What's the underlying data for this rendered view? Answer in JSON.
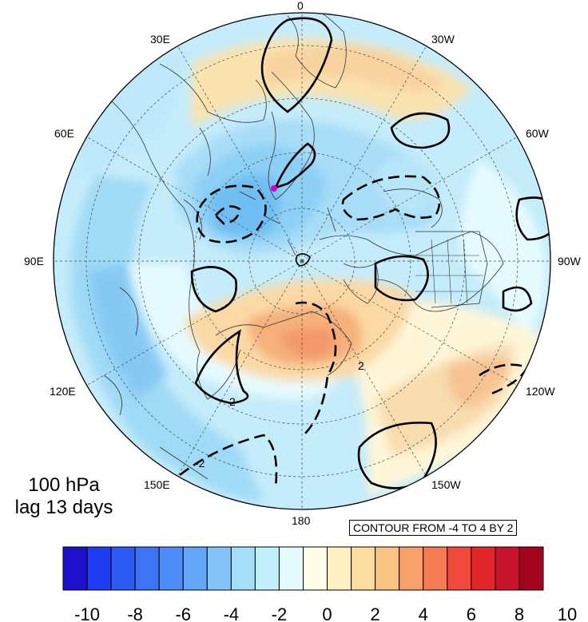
{
  "caption": {
    "level": "100 hPa",
    "lag": "lag 13 days"
  },
  "contour_note": "CONTOUR FROM -4 TO 4 BY 2",
  "longitude_labels": [
    "0",
    "30W",
    "60W",
    "90W",
    "120W",
    "150W",
    "180",
    "150E",
    "120E",
    "90E",
    "60E",
    "30E"
  ],
  "contour_labels": [
    "2",
    "-2",
    "2"
  ],
  "colorbar": {
    "colors": [
      "#1e0fcc",
      "#1f3cf0",
      "#2f5bf5",
      "#3d74f6",
      "#4e8cf6",
      "#64a6f7",
      "#85c4f9",
      "#a5def9",
      "#c3eefb",
      "#e4fbff",
      "#fffde6",
      "#fff1c3",
      "#fbde9f",
      "#f7c484",
      "#f6a26a",
      "#f47d55",
      "#f14a3a",
      "#e2262b",
      "#c7142c",
      "#a2041f"
    ],
    "tick_labels": [
      "-10",
      "-8",
      "-6",
      "-4",
      "-2",
      "0",
      "2",
      "4",
      "6",
      "8",
      "10"
    ]
  },
  "marker_color": "#d600d6"
}
